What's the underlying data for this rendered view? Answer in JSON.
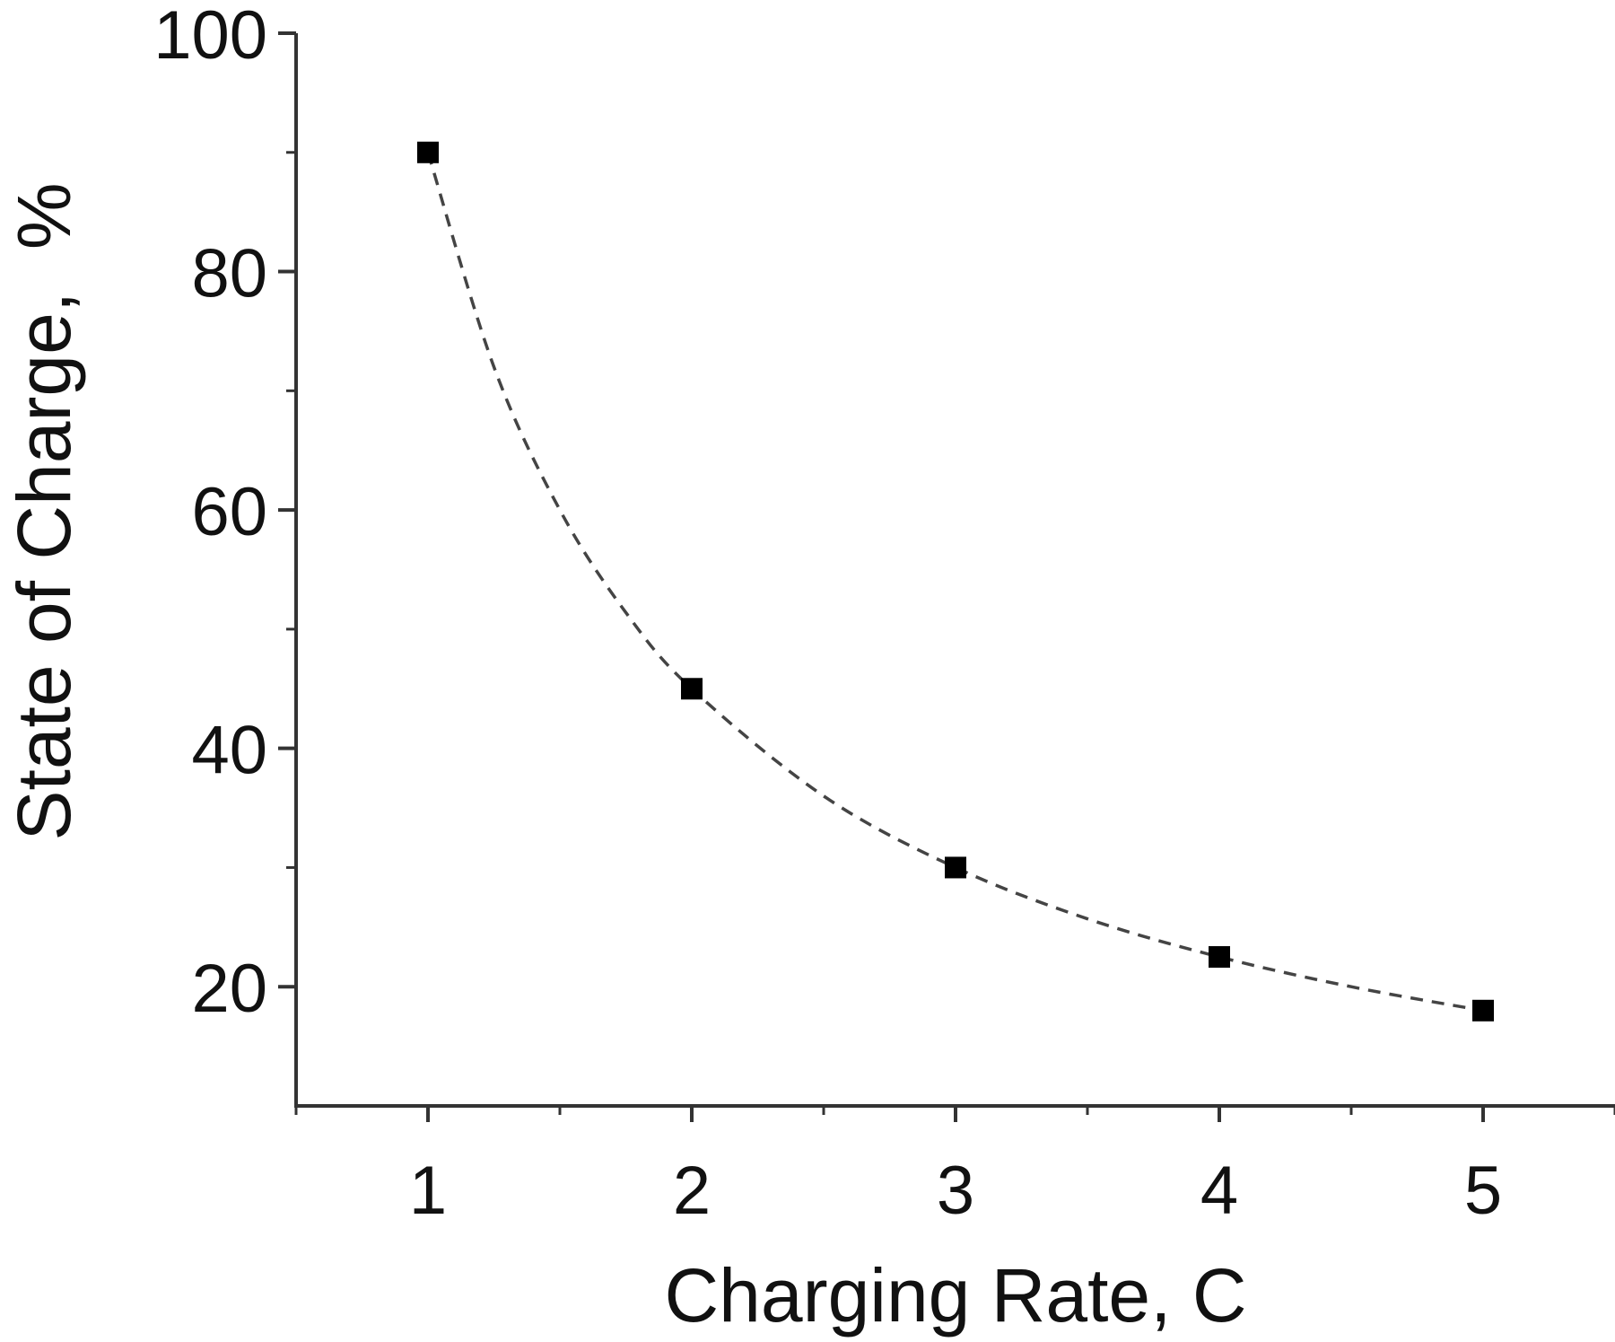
{
  "chart_data": {
    "type": "scatter",
    "title": "",
    "xlabel": "Charging Rate, C",
    "ylabel": "State of Charge,  %",
    "xlim": [
      0.5,
      5.5
    ],
    "ylim": [
      10,
      100
    ],
    "x_ticks": [
      1,
      2,
      3,
      4,
      5
    ],
    "x_tick_labels": [
      "1",
      "2",
      "3",
      "4",
      "5"
    ],
    "x_minor_ticks": [
      0.5,
      1.5,
      2.5,
      3.5,
      4.5,
      5.5
    ],
    "y_ticks": [
      20,
      40,
      60,
      80,
      100
    ],
    "y_tick_labels": [
      "20",
      "40",
      "60",
      "80",
      "100"
    ],
    "y_minor_ticks": [
      30,
      50,
      70,
      90
    ],
    "grid": false,
    "legend": "none",
    "series": [
      {
        "marker": "square",
        "color": "#000000",
        "x": [
          1,
          2,
          3,
          4,
          5
        ],
        "y": [
          90,
          45,
          30,
          22.5,
          18
        ]
      }
    ],
    "fit_curve": {
      "style": "dashed",
      "color": "#444444",
      "x": [
        1,
        1.25,
        1.5,
        1.75,
        2,
        2.5,
        3,
        3.5,
        4,
        4.5,
        5
      ],
      "y": [
        90,
        72,
        60,
        51.4,
        45,
        36,
        30,
        25.7,
        22.5,
        20,
        18
      ]
    }
  }
}
